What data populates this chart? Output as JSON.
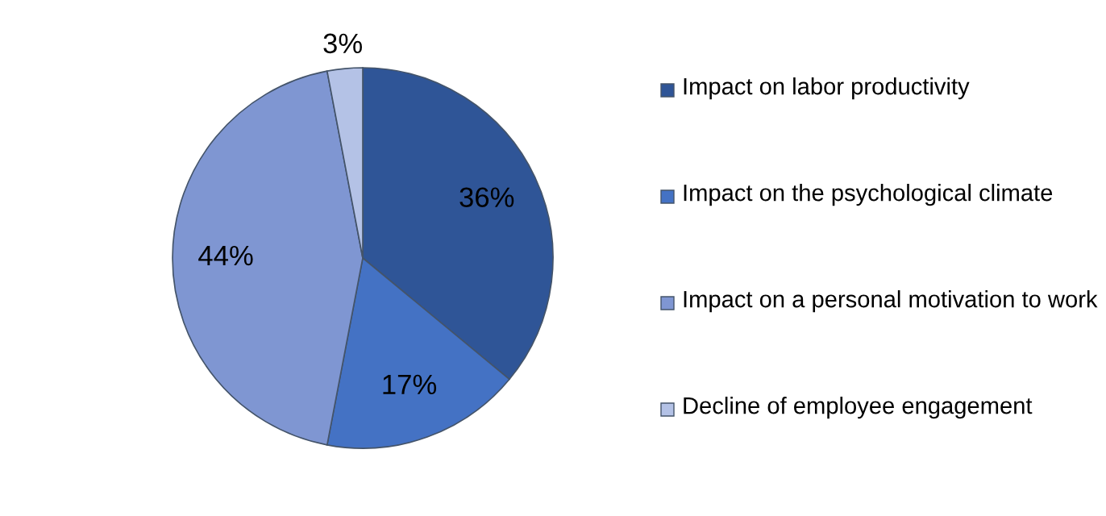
{
  "chart_data": {
    "type": "pie",
    "categories": [
      "Impact on labor productivity",
      "Impact on the psychological climate",
      "Impact on a personal motivation to work",
      "Decline of employee engagement"
    ],
    "values": [
      36,
      17,
      44,
      3
    ],
    "colors": [
      "#2f5597",
      "#4472c4",
      "#7f96d2",
      "#b4c2e6"
    ],
    "value_labels": [
      "36%",
      "17%",
      "44%",
      "3%"
    ],
    "legend": "right"
  }
}
